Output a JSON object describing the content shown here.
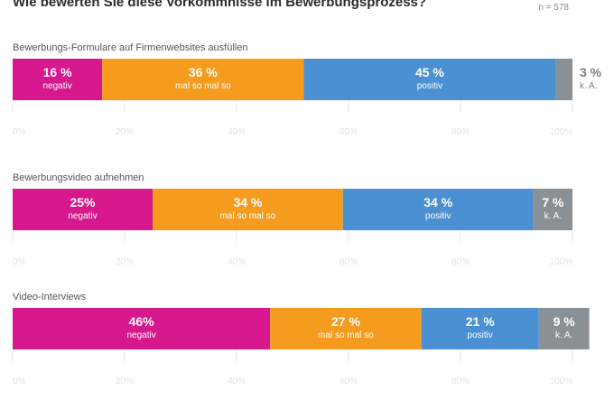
{
  "title": "Wie bewerten Sie diese Vorkommnisse im Bewerbungsprozess?",
  "n_label": "n = 578",
  "colors": {
    "negativ": "#d6188c",
    "mal so mal so": "#f59c1f",
    "positiv": "#4a90d2",
    "k. A.": "#8a9196",
    "grid": "#e6e6e6"
  },
  "chart_data": [
    {
      "type": "bar",
      "orientation": "horizontal",
      "stacked": true,
      "title": "Bewerbungs-Formulare auf Firmenwebsites ausfüllen",
      "xlim": [
        0,
        100
      ],
      "ticks": [
        "0%",
        "20%",
        "40%",
        "60%",
        "80%",
        "100%"
      ],
      "segments": [
        {
          "category": "negativ",
          "value": 16,
          "label": "16 %"
        },
        {
          "category": "mal so mal so",
          "value": 36,
          "label": "36 %"
        },
        {
          "category": "positiv",
          "value": 45,
          "label": "45 %"
        },
        {
          "category": "k. A.",
          "value": 3,
          "label": "3 %"
        }
      ]
    },
    {
      "type": "bar",
      "orientation": "horizontal",
      "stacked": true,
      "title": "Bewerbungsvideo aufnehmen",
      "xlim": [
        0,
        100
      ],
      "ticks": [
        "0%",
        "20%",
        "40%",
        "60%",
        "80%",
        "100%"
      ],
      "segments": [
        {
          "category": "negativ",
          "value": 25,
          "label": "25%"
        },
        {
          "category": "mal so mal so",
          "value": 34,
          "label": "34 %"
        },
        {
          "category": "positiv",
          "value": 34,
          "label": "34 %"
        },
        {
          "category": "k. A.",
          "value": 7,
          "label": "7 %"
        }
      ]
    },
    {
      "type": "bar",
      "orientation": "horizontal",
      "stacked": true,
      "title": "Video-Interviews",
      "xlim": [
        0,
        100
      ],
      "ticks": [
        "0%",
        "20%",
        "40%",
        "60%",
        "80%",
        "100%"
      ],
      "segments": [
        {
          "category": "negativ",
          "value": 46,
          "label": "46%"
        },
        {
          "category": "mal so mal so",
          "value": 27,
          "label": "27 %"
        },
        {
          "category": "positiv",
          "value": 21,
          "label": "21 %"
        },
        {
          "category": "k. A.",
          "value": 9,
          "label": "9 %"
        }
      ]
    }
  ]
}
